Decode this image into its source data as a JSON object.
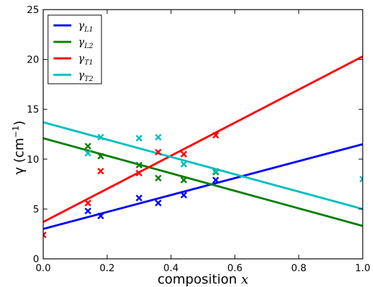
{
  "chart_data": {
    "type": "scatter",
    "xlabel": "composition",
    "xlabel_var": "x",
    "ylabel": "γ (cm",
    "ylabel_sup": "−1",
    "ylabel_close": ")",
    "xlim": [
      0.0,
      1.0
    ],
    "ylim": [
      0,
      25
    ],
    "xticks": [
      "0.0",
      "0.2",
      "0.4",
      "0.6",
      "0.8",
      "1.0"
    ],
    "yticks": [
      "0",
      "5",
      "10",
      "15",
      "20",
      "25"
    ],
    "grid": false,
    "legend_position": "top-left",
    "series": [
      {
        "name": "γL1",
        "symbol": "γ",
        "subscript": "L1",
        "color": "#0000ff",
        "points": [
          [
            0.14,
            4.8
          ],
          [
            0.18,
            4.3
          ],
          [
            0.3,
            6.1
          ],
          [
            0.36,
            5.6
          ],
          [
            0.44,
            6.4
          ],
          [
            0.54,
            7.9
          ]
        ],
        "fit": [
          [
            0.0,
            3.0
          ],
          [
            1.0,
            11.5
          ]
        ]
      },
      {
        "name": "γL2",
        "symbol": "γ",
        "subscript": "L2",
        "color": "#008000",
        "points": [
          [
            0.14,
            11.3
          ],
          [
            0.18,
            10.3
          ],
          [
            0.3,
            9.4
          ],
          [
            0.36,
            8.1
          ],
          [
            0.44,
            7.9
          ],
          [
            0.54,
            8.7
          ]
        ],
        "fit": [
          [
            0.0,
            12.1
          ],
          [
            1.0,
            3.3
          ]
        ]
      },
      {
        "name": "γT1",
        "symbol": "γ",
        "subscript": "T1",
        "color": "#ff0000",
        "points": [
          [
            0.0,
            2.4
          ],
          [
            0.14,
            5.6
          ],
          [
            0.18,
            8.8
          ],
          [
            0.3,
            8.6
          ],
          [
            0.36,
            10.7
          ],
          [
            0.44,
            10.5
          ],
          [
            0.54,
            12.4
          ]
        ],
        "fit": [
          [
            0.0,
            3.7
          ],
          [
            1.0,
            20.3
          ]
        ]
      },
      {
        "name": "γT2",
        "symbol": "γ",
        "subscript": "T2",
        "color": "#00bfbf",
        "points": [
          [
            0.14,
            10.6
          ],
          [
            0.18,
            12.2
          ],
          [
            0.3,
            12.1
          ],
          [
            0.36,
            12.2
          ],
          [
            0.44,
            9.5
          ],
          [
            0.54,
            8.8
          ],
          [
            1.0,
            8.0
          ]
        ],
        "fit": [
          [
            0.0,
            13.7
          ],
          [
            1.0,
            5.0
          ]
        ]
      }
    ]
  }
}
